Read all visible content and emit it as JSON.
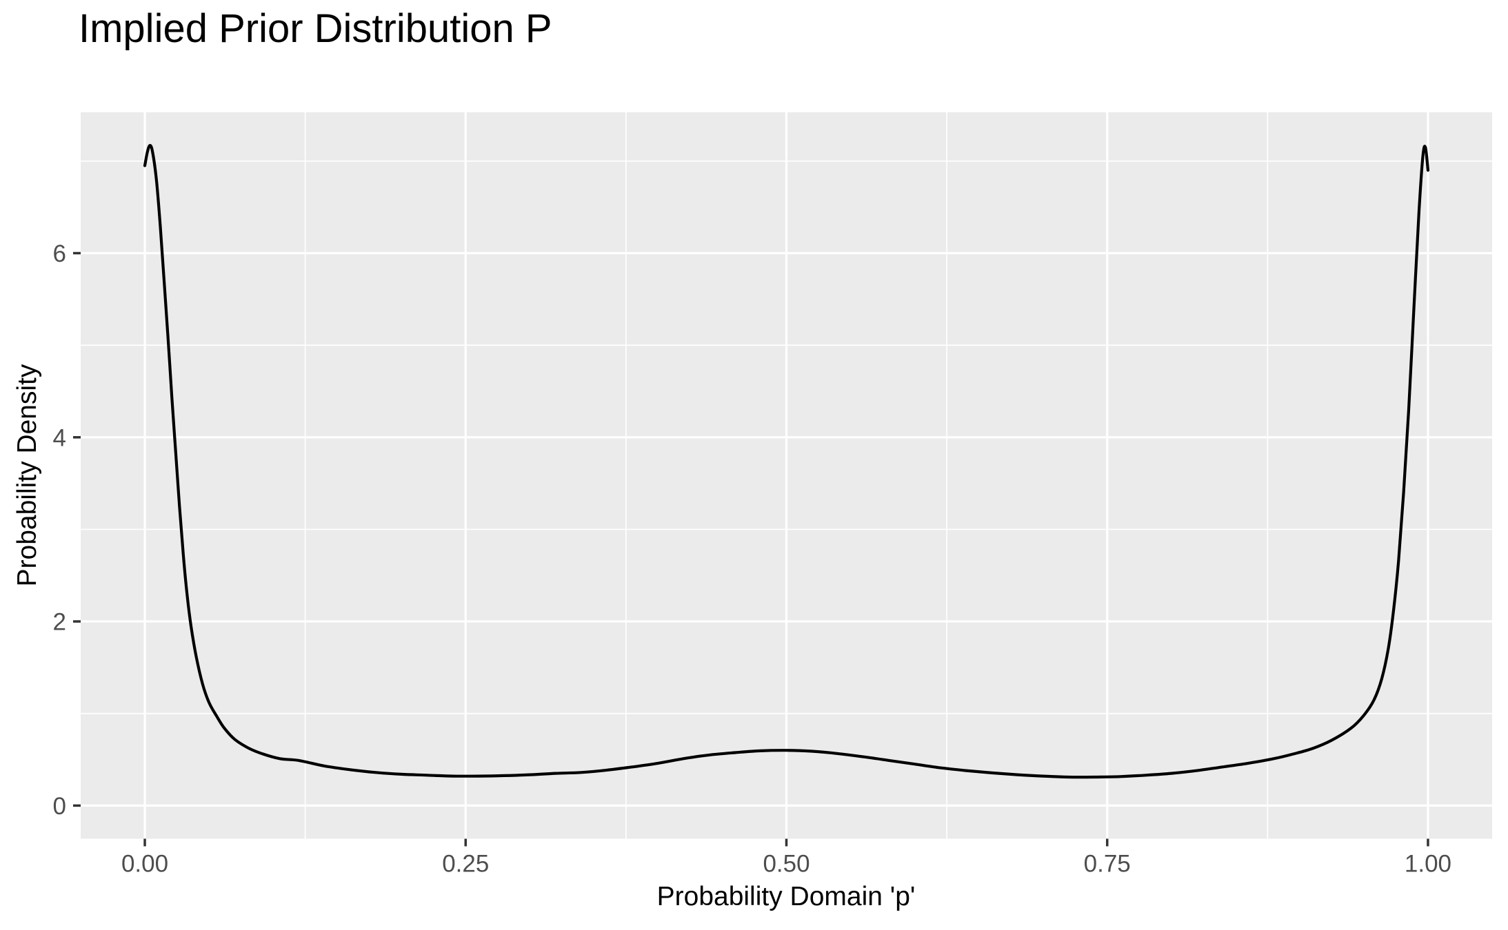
{
  "chart_data": {
    "type": "line",
    "title": "Implied Prior Distribution P",
    "xlabel": "Probability Domain 'p'",
    "ylabel": "Probability Density",
    "legend": "none",
    "grid": "major+minor",
    "xlim": [
      -0.05,
      1.05
    ],
    "ylim": [
      -0.36,
      7.53
    ],
    "x_ticks": {
      "values": [
        0,
        0.25,
        0.5,
        0.75,
        1.0
      ],
      "labels": [
        "0.00",
        "0.25",
        "0.50",
        "0.75",
        "1.00"
      ]
    },
    "y_ticks": {
      "values": [
        0,
        2,
        4,
        6
      ],
      "labels": [
        "0",
        "2",
        "4",
        "6"
      ]
    },
    "x_minor": [
      0.125,
      0.375,
      0.625,
      0.875
    ],
    "y_minor": [
      1,
      3,
      5,
      7
    ],
    "series": [
      {
        "name": "prior-density",
        "color": "#000000",
        "x": [
          0.0,
          0.002,
          0.004,
          0.006,
          0.009,
          0.012,
          0.015,
          0.018,
          0.021,
          0.024,
          0.027,
          0.03,
          0.033,
          0.036,
          0.04,
          0.045,
          0.05,
          0.056,
          0.062,
          0.07,
          0.08,
          0.09,
          0.105,
          0.12,
          0.14,
          0.16,
          0.18,
          0.2,
          0.22,
          0.24,
          0.26,
          0.28,
          0.3,
          0.32,
          0.34,
          0.36,
          0.38,
          0.4,
          0.42,
          0.44,
          0.46,
          0.48,
          0.5,
          0.52,
          0.54,
          0.56,
          0.58,
          0.6,
          0.62,
          0.64,
          0.66,
          0.68,
          0.7,
          0.72,
          0.74,
          0.76,
          0.78,
          0.8,
          0.82,
          0.84,
          0.86,
          0.88,
          0.895,
          0.91,
          0.925,
          0.94,
          0.95,
          0.958,
          0.964,
          0.969,
          0.973,
          0.977,
          0.981,
          0.985,
          0.989,
          0.993,
          0.996,
          0.998,
          1.0
        ],
        "y": [
          6.95,
          7.1,
          7.17,
          7.1,
          6.8,
          6.3,
          5.7,
          5.1,
          4.45,
          3.85,
          3.25,
          2.72,
          2.28,
          1.95,
          1.62,
          1.32,
          1.12,
          0.97,
          0.84,
          0.72,
          0.63,
          0.57,
          0.51,
          0.49,
          0.43,
          0.39,
          0.36,
          0.34,
          0.33,
          0.32,
          0.32,
          0.325,
          0.335,
          0.35,
          0.36,
          0.385,
          0.42,
          0.46,
          0.51,
          0.55,
          0.575,
          0.595,
          0.6,
          0.59,
          0.565,
          0.53,
          0.49,
          0.45,
          0.41,
          0.38,
          0.355,
          0.335,
          0.32,
          0.31,
          0.31,
          0.315,
          0.33,
          0.35,
          0.38,
          0.42,
          0.46,
          0.51,
          0.56,
          0.62,
          0.71,
          0.84,
          0.98,
          1.15,
          1.38,
          1.7,
          2.1,
          2.65,
          3.4,
          4.3,
          5.4,
          6.45,
          7.05,
          7.15,
          6.9
        ]
      }
    ],
    "colors": {
      "background": "#FFFFFF",
      "panel_bg": "#EBEBEB",
      "grid": "#FFFFFF",
      "curve": "#000000",
      "axis_text": "#4D4D4D",
      "tick_mark": "#333333",
      "title_color": "#000000"
    }
  }
}
